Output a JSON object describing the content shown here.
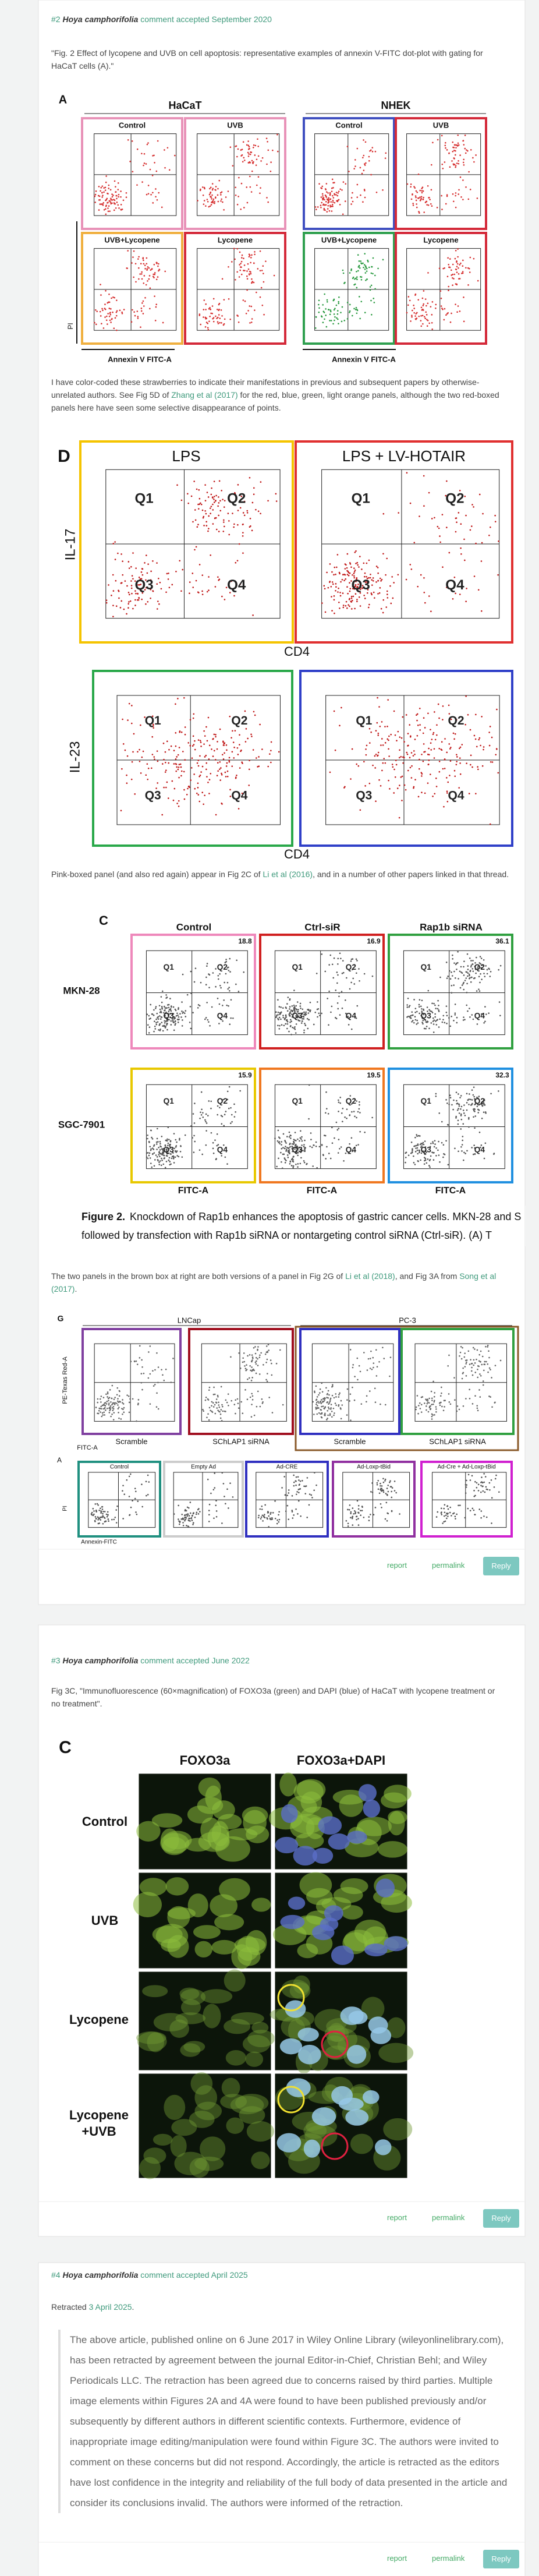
{
  "comments": [
    {
      "number": "#2",
      "author": "Hoya camphorifolia",
      "status": "comment accepted September 2020",
      "quote": "\"Fig. 2 Effect of lycopene and UVB on cell apoptosis: representative examples of annexin V-FITC dot-plot with gating for HaCaT cells (A).\"",
      "figure_a": {
        "letter": "A",
        "groups": [
          "HaCaT",
          "NHEK"
        ],
        "panels": [
          "Control",
          "UVB",
          "UVB+Lycopene",
          "Lycopene",
          "Control",
          "UVB",
          "UVB+Lycopene",
          "Lycopene"
        ],
        "y_label": "PI",
        "x_labels": [
          "Annexin V FITC-A",
          "Annexin V FITC-A"
        ]
      },
      "paragraph_1": {
        "before": "I have color-coded these strawberries to indicate their manifestations in previous and subsequent papers by otherwise-unrelated authors. See Fig 5D of ",
        "link": "Zhang et al (2017)",
        "after": " for the red, blue, green, light orange panels, although the two red-boxed panels here have seen some selective disappearance of points."
      },
      "figure_d": {
        "letter": "D",
        "panels": [
          "LPS",
          "LPS + LV-HOTAIR"
        ],
        "y_labels": [
          "IL-17",
          "IL-23"
        ],
        "x_labels": [
          "CD4",
          "CD4"
        ],
        "quadrants": [
          "Q1",
          "Q2",
          "Q3",
          "Q4"
        ]
      },
      "paragraph_2": {
        "before": "Pink-boxed panel (and also red again) appear in Fig 2C of ",
        "link": "Li et al (2016)",
        "after": ", and in a number of other papers linked in that thread."
      },
      "figure_c": {
        "letter": "C",
        "columns": [
          "Control",
          "Ctrl-siR",
          "Rap1b siRNA"
        ],
        "rows": [
          "MKN-28",
          "SGC-7901"
        ],
        "percents": [
          "18.8",
          "16.9",
          "36.1",
          "15.9",
          "19.5",
          "32.3"
        ],
        "x_label": "FITC-A",
        "quadrants": [
          "Q1",
          "Q2",
          "Q3",
          "Q4"
        ],
        "caption_label": "Figure 2.",
        "caption_line_1": "Knockdown of Rap1b enhances the apoptosis of gastric cancer cells. MKN-28 and S",
        "caption_line_2": "followed by transfection with Rap1b siRNA or nontargeting control siRNA (Ctrl-siR). (A) T"
      },
      "paragraph_3": {
        "before": "The two panels in the brown box at right are both versions of a panel in Fig 2G of ",
        "link": "Li et al (2018)",
        "after_1": ", and Fig 3A from ",
        "link_2": "Song et al (2017)",
        "after_2": "."
      },
      "figure_g": {
        "letter": "G",
        "groups": [
          "LNCap",
          "PC-3"
        ],
        "panels": [
          "Scramble",
          "SChLAP1 siRNA",
          "Scramble",
          "SChLAP1 siRNA"
        ],
        "y_label": "PE-Texas Red-A",
        "x_label": "FITC-A",
        "letter_2": "A",
        "panels_2": [
          "Control",
          "Empty Ad",
          "Ad-CRE",
          "Ad-Loxp-tBid",
          "Ad-Cre + Ad-Loxp-tBid"
        ],
        "y_label_2": "PI",
        "x_label_2": "Annexin-FITC"
      },
      "actions": [
        "report",
        "permalink",
        "Reply"
      ]
    },
    {
      "number": "#3",
      "author": "Hoya camphorifolia",
      "status": "comment accepted June 2022",
      "quote": "Fig 3C, \"Immunofluorescence (60×magnification) of FOXO3a (green) and DAPI (blue) of HaCaT with lycopene treatment or no treatment\".",
      "figure": {
        "letter": "C",
        "columns": [
          "FOXO3a",
          "FOXO3a+DAPI"
        ],
        "rows": [
          "Control",
          "UVB",
          "Lycopene",
          "Lycopene +UVB"
        ]
      },
      "actions": [
        "report",
        "permalink",
        "Reply"
      ]
    },
    {
      "number": "#4",
      "author": "Hoya camphorifolia",
      "status": "comment accepted April 2025",
      "retracted": {
        "before": "Retracted ",
        "link": "3 April 2025",
        "after": "."
      },
      "blockquote": "The above article, published online on 6 June 2017 in Wiley Online Library (wileyonlinelibrary.com), has been retracted by agreement between the journal Editor-in-Chief, Christian Behl; and Wiley Periodicals LLC. The retraction has been agreed due to concerns raised by third parties. Multiple image elements within Figures 2A and 4A were found to have been published previously and/or subsequently by different authors in different scientific contexts. Furthermore, evidence of inappropriate image editing/manipulation were found within Figure 3C. The authors were invited to comment on these concerns but did not respond. Accordingly, the article is retracted as the editors have lost confidence in the integrity and reliability of the full body of data presented in the article and consider its conclusions invalid. The authors were informed of the retraction.",
      "actions": [
        "report",
        "permalink",
        "Reply"
      ]
    }
  ]
}
